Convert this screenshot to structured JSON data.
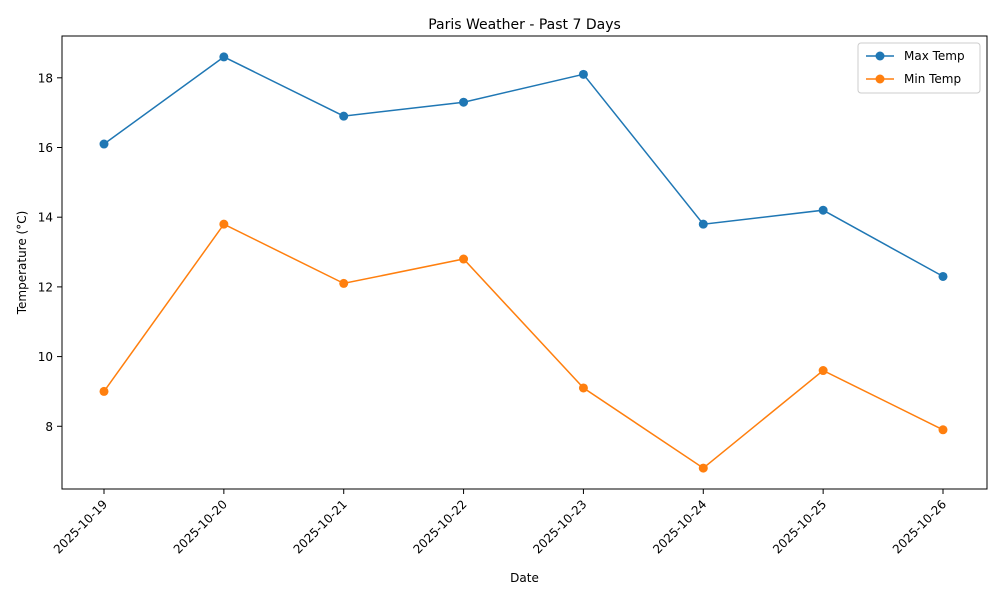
{
  "chart_data": {
    "type": "line",
    "title": "Paris Weather - Past 7 Days",
    "xlabel": "Date",
    "ylabel": "Temperature (°C)",
    "categories": [
      "2025-10-19",
      "2025-10-20",
      "2025-10-21",
      "2025-10-22",
      "2025-10-23",
      "2025-10-24",
      "2025-10-25",
      "2025-10-26"
    ],
    "series": [
      {
        "name": "Max Temp",
        "color": "#1f77b4",
        "values": [
          16.1,
          18.6,
          16.9,
          17.3,
          18.1,
          13.8,
          14.2,
          12.3
        ]
      },
      {
        "name": "Min Temp",
        "color": "#ff7f0e",
        "values": [
          9.0,
          13.8,
          12.1,
          12.8,
          9.1,
          6.8,
          9.6,
          7.9
        ]
      }
    ],
    "ylim": [
      6.2,
      19.2
    ],
    "yticks": [
      8,
      10,
      12,
      14,
      16,
      18
    ],
    "grid": false,
    "legend_position": "top-right",
    "marker": "circle",
    "xtick_rotation": 45
  }
}
